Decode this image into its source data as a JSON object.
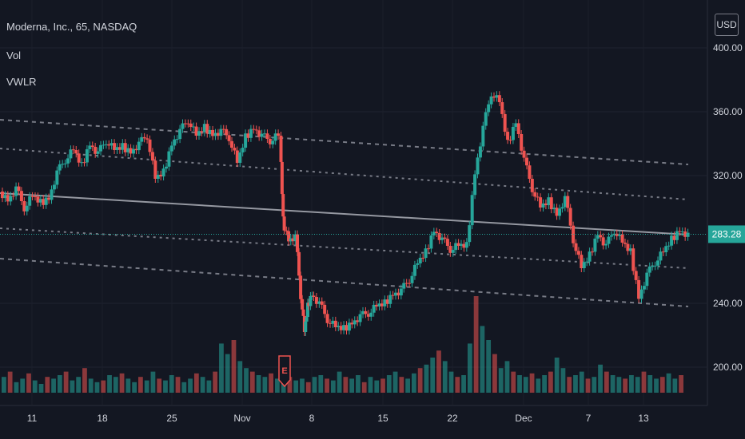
{
  "header": {
    "symbol": "Moderna, Inc., 65, NASDAQ",
    "indicator_1": "Vol",
    "indicator_2": "VWLR",
    "currency": "USD"
  },
  "colors": {
    "background": "#131722",
    "up": "#26a69a",
    "down": "#ef5350",
    "regression": "#9598a1",
    "band": "#787b86",
    "price_line": "#26a69a",
    "grid": "#2a2e39",
    "axis_text": "#d1d4dc"
  },
  "chart_data": {
    "type": "candlestick",
    "x_ticks": [
      "11",
      "18",
      "25",
      "Nov",
      "8",
      "15",
      "22",
      "Dec",
      "7",
      "13"
    ],
    "y_ticks": [
      "400.00",
      "360.00",
      "320.00",
      "240.00",
      "200.00"
    ],
    "ylim": [
      190,
      406
    ],
    "last_price": "283.28",
    "event_marker": "E",
    "close_path": [
      [
        0,
        310
      ],
      [
        0.5,
        305
      ],
      [
        1,
        312
      ],
      [
        1.5,
        300
      ],
      [
        2,
        307
      ],
      [
        2.5,
        303
      ],
      [
        3,
        306
      ],
      [
        3.5,
        322
      ],
      [
        4,
        330
      ],
      [
        4.5,
        336
      ],
      [
        5,
        326
      ],
      [
        5.5,
        340
      ],
      [
        6,
        334
      ],
      [
        6.5,
        342
      ],
      [
        7,
        336
      ],
      [
        7.5,
        338
      ],
      [
        8,
        335
      ],
      [
        8.5,
        340
      ],
      [
        9,
        345
      ],
      [
        9.5,
        318
      ],
      [
        10,
        322
      ],
      [
        10.5,
        340
      ],
      [
        11,
        348
      ],
      [
        11.5,
        355
      ],
      [
        12,
        345
      ],
      [
        12.5,
        350
      ],
      [
        13,
        346
      ],
      [
        13.5,
        348
      ],
      [
        14,
        344
      ],
      [
        14.5,
        328
      ],
      [
        15,
        344
      ],
      [
        15.5,
        350
      ],
      [
        16,
        345
      ],
      [
        16.5,
        342
      ],
      [
        17,
        345
      ],
      [
        17.2,
        292
      ],
      [
        17.6,
        280
      ],
      [
        18,
        282
      ],
      [
        18.3,
        245
      ],
      [
        18.5,
        222
      ],
      [
        18.7,
        238
      ],
      [
        19,
        246
      ],
      [
        19.5,
        240
      ],
      [
        20,
        230
      ],
      [
        20.5,
        225
      ],
      [
        21,
        224
      ],
      [
        21.5,
        228
      ],
      [
        22,
        232
      ],
      [
        22.5,
        234
      ],
      [
        23,
        238
      ],
      [
        23.5,
        240
      ],
      [
        24,
        246
      ],
      [
        24.5,
        248
      ],
      [
        25,
        255
      ],
      [
        25.5,
        265
      ],
      [
        26,
        272
      ],
      [
        26.5,
        286
      ],
      [
        27,
        280
      ],
      [
        27.5,
        274
      ],
      [
        28,
        276
      ],
      [
        28.5,
        276
      ],
      [
        29,
        322
      ],
      [
        29.5,
        350
      ],
      [
        30,
        372
      ],
      [
        30.5,
        366
      ],
      [
        31,
        340
      ],
      [
        31.5,
        354
      ],
      [
        32,
        330
      ],
      [
        32.5,
        312
      ],
      [
        33,
        300
      ],
      [
        33.5,
        304
      ],
      [
        34,
        296
      ],
      [
        34.5,
        306
      ],
      [
        35,
        280
      ],
      [
        35.5,
        262
      ],
      [
        36,
        270
      ],
      [
        36.5,
        284
      ],
      [
        37,
        276
      ],
      [
        37.5,
        286
      ],
      [
        38,
        278
      ],
      [
        38.5,
        272
      ],
      [
        39,
        244
      ],
      [
        39.5,
        258
      ],
      [
        40,
        266
      ],
      [
        40.5,
        272
      ],
      [
        41,
        280
      ],
      [
        41.5,
        286
      ],
      [
        42,
        283
      ]
    ],
    "regression_line": [
      [
        0,
        309
      ],
      [
        42,
        283
      ]
    ],
    "bands": [
      {
        "kind": "dashed",
        "points": [
          [
            0,
            355
          ],
          [
            42,
            327
          ]
        ]
      },
      {
        "kind": "dotted",
        "points": [
          [
            0,
            337
          ],
          [
            42,
            305
          ]
        ]
      },
      {
        "kind": "dotted",
        "points": [
          [
            0,
            287
          ],
          [
            42,
            262
          ]
        ]
      },
      {
        "kind": "dashed",
        "points": [
          [
            0,
            268
          ],
          [
            42,
            238
          ]
        ]
      }
    ],
    "volume": [
      9,
      12,
      6,
      8,
      11,
      7,
      5,
      9,
      8,
      10,
      12,
      7,
      9,
      14,
      8,
      6,
      7,
      10,
      9,
      11,
      8,
      6,
      9,
      7,
      12,
      8,
      7,
      10,
      9,
      6,
      8,
      11,
      9,
      7,
      12,
      28,
      22,
      30,
      18,
      14,
      12,
      10,
      9,
      11,
      8,
      10,
      9,
      7,
      8,
      6,
      9,
      10,
      8,
      7,
      12,
      9,
      8,
      10,
      6,
      9,
      7,
      8,
      10,
      12,
      9,
      8,
      11,
      14,
      16,
      20,
      24,
      18,
      12,
      9,
      10,
      28,
      55,
      38,
      30,
      22,
      14,
      18,
      12,
      10,
      9,
      11,
      8,
      10,
      12,
      20,
      14,
      9,
      10,
      12,
      8,
      9,
      16,
      12,
      10,
      9,
      8,
      10,
      9,
      12,
      10,
      8,
      9,
      11,
      8,
      10
    ]
  }
}
